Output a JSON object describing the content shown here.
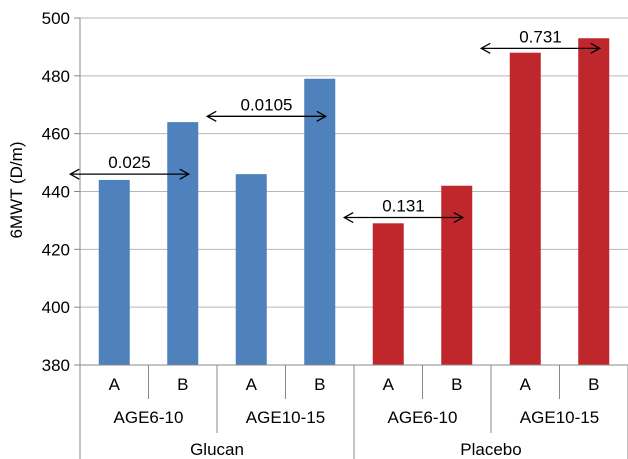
{
  "chart_data": {
    "type": "bar",
    "ylabel": "6MWT (D/m)",
    "ylim": [
      380,
      500
    ],
    "yticks": [
      380,
      400,
      420,
      440,
      460,
      480,
      500
    ],
    "grid": true,
    "categories": [
      {
        "group": "Glucan",
        "subgroup": "AGE6-10",
        "label": "A",
        "value": 444
      },
      {
        "group": "Glucan",
        "subgroup": "AGE6-10",
        "label": "B",
        "value": 464
      },
      {
        "group": "Glucan",
        "subgroup": "AGE10-15",
        "label": "A",
        "value": 446
      },
      {
        "group": "Glucan",
        "subgroup": "AGE10-15",
        "label": "B",
        "value": 479
      },
      {
        "group": "Placebo",
        "subgroup": "AGE6-10",
        "label": "A",
        "value": 429
      },
      {
        "group": "Placebo",
        "subgroup": "AGE6-10",
        "label": "B",
        "value": 442
      },
      {
        "group": "Placebo",
        "subgroup": "AGE10-15",
        "label": "A",
        "value": 488
      },
      {
        "group": "Placebo",
        "subgroup": "AGE10-15",
        "label": "B",
        "value": 493
      }
    ],
    "subgroups": [
      "AGE6-10",
      "AGE10-15",
      "AGE6-10",
      "AGE10-15"
    ],
    "groups": [
      "Glucan",
      "Placebo"
    ],
    "colors": {
      "Glucan": "#4f81bd",
      "Placebo": "#c0272d"
    },
    "annotations": [
      {
        "text": "0.025",
        "from": 0,
        "to": 1,
        "y": 446
      },
      {
        "text": "0.0105",
        "from": 2,
        "to": 3,
        "y": 466
      },
      {
        "text": "0.131",
        "from": 4,
        "to": 5,
        "y": 431
      },
      {
        "text": "0.731",
        "from": 6,
        "to": 7,
        "y": 489.5
      }
    ]
  }
}
